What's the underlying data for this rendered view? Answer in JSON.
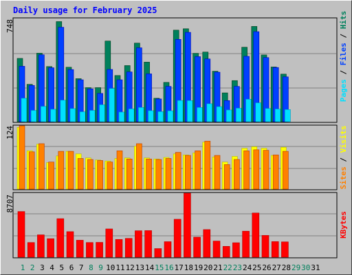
{
  "title": "Daily usage for February 2025",
  "colors": {
    "hits": "#00805c",
    "files": "#0040ff",
    "pages": "#00e0ff",
    "visits": "#ffff00",
    "sites": "#ff8000",
    "kbytes": "#ff0000",
    "weekday_label": "#000000",
    "weekend_label": "#00805c",
    "background": "#c0c0c0",
    "grid": "#808080"
  },
  "chart_data": [
    {
      "type": "bar",
      "title": "",
      "right_label": [
        "Pages",
        "Files",
        "Hits"
      ],
      "ymax_label": "748",
      "ylim": [
        0,
        748
      ],
      "categories": [
        "1",
        "2",
        "3",
        "4",
        "5",
        "6",
        "7",
        "8",
        "9",
        "10",
        "11",
        "12",
        "13",
        "14",
        "15",
        "16",
        "17",
        "18",
        "19",
        "20",
        "21",
        "22",
        "23",
        "24",
        "25",
        "26",
        "27",
        "28",
        "29",
        "30",
        "31"
      ],
      "weekend_days": [
        "1",
        "2",
        "8",
        "9",
        "15",
        "16",
        "22",
        "23",
        "29",
        "30"
      ],
      "series": [
        {
          "name": "Hits",
          "values": [
            459,
            271,
            497,
            400,
            726,
            395,
            312,
            247,
            247,
            585,
            335,
            407,
            570,
            432,
            170,
            285,
            664,
            674,
            496,
            505,
            366,
            209,
            298,
            540,
            691,
            484,
            397,
            345,
            0,
            0,
            0
          ]
        },
        {
          "name": "Files",
          "values": [
            402,
            263,
            485,
            391,
            685,
            378,
            304,
            238,
            205,
            379,
            304,
            361,
            536,
            347,
            165,
            256,
            597,
            648,
            472,
            455,
            359,
            153,
            256,
            474,
            653,
            465,
            393,
            325,
            0,
            0,
            0
          ]
        },
        {
          "name": "Pages",
          "values": [
            170,
            82,
            111,
            90,
            156,
            95,
            72,
            82,
            123,
            241,
            70,
            93,
            103,
            80,
            73,
            79,
            154,
            153,
            103,
            130,
            109,
            85,
            98,
            163,
            137,
            96,
            92,
            88,
            0,
            0,
            0
          ]
        }
      ]
    },
    {
      "type": "bar",
      "title": "",
      "right_label": [
        "Sites",
        "Visits"
      ],
      "ymax_label": "124",
      "ylim": [
        0,
        124
      ],
      "series": [
        {
          "name": "Visits",
          "values": [
            121,
            75,
            88,
            52,
            65,
            74,
            69,
            61,
            57,
            55,
            60,
            61,
            84,
            61,
            59,
            62,
            69,
            67,
            71,
            92,
            63,
            53,
            64,
            80,
            83,
            80,
            66,
            82,
            0,
            0,
            0
          ]
        },
        {
          "name": "Sites",
          "values": [
            124,
            73,
            89,
            53,
            74,
            74,
            60,
            58,
            56,
            53,
            75,
            59,
            89,
            59,
            58,
            60,
            72,
            66,
            75,
            94,
            66,
            48,
            58,
            75,
            77,
            76,
            67,
            74,
            0,
            0,
            0
          ]
        }
      ]
    },
    {
      "type": "bar",
      "title": "",
      "right_label": [
        "KBytes"
      ],
      "ymax_label": "8707",
      "ylim": [
        0,
        8707
      ],
      "series": [
        {
          "name": "KBytes",
          "values": [
            6213,
            1993,
            3037,
            2514,
            5240,
            3473,
            2305,
            1993,
            2012,
            3840,
            2409,
            2551,
            3594,
            3612,
            1166,
            2105,
            5157,
            8707,
            2722,
            3752,
            2190,
            1470,
            1962,
            3535,
            6010,
            2958,
            2114,
            2078,
            0,
            0,
            0
          ]
        }
      ]
    }
  ]
}
